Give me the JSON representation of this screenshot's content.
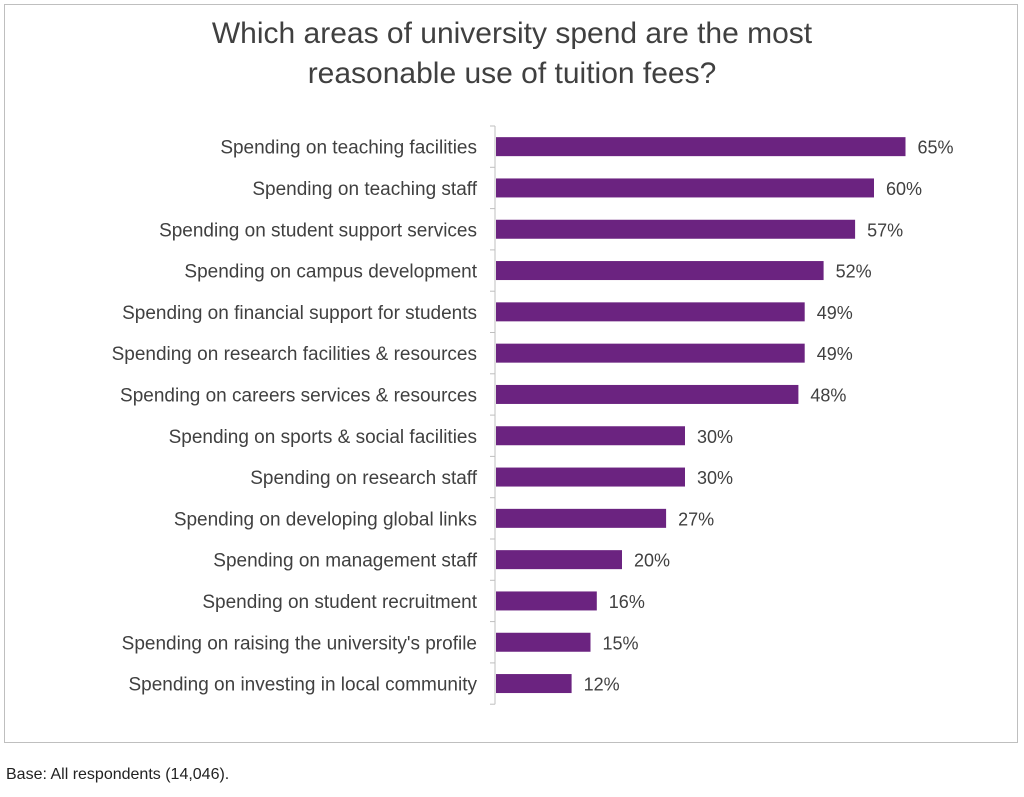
{
  "chart_data": {
    "type": "bar",
    "orientation": "horizontal",
    "title_lines": [
      "Which areas of university spend are the most",
      "reasonable use of tuition fees?"
    ],
    "categories": [
      "Spending on teaching facilities",
      "Spending on teaching staff",
      "Spending on student support services",
      "Spending on campus development",
      "Spending on financial support for students",
      "Spending on research facilities & resources",
      "Spending on careers services & resources",
      "Spending on sports & social facilities",
      "Spending on research staff",
      "Spending on developing global links",
      "Spending on management staff",
      "Spending on student recruitment",
      "Spending on raising the university's profile",
      "Spending on investing in local community"
    ],
    "values": [
      65,
      60,
      57,
      52,
      49,
      49,
      48,
      30,
      30,
      27,
      20,
      16,
      15,
      12
    ],
    "value_suffix": "%",
    "bar_color": "#6b2380",
    "xlim": [
      0,
      100
    ],
    "grid": false,
    "legend": "none"
  },
  "footnote": "Base: All respondents (14,046)."
}
